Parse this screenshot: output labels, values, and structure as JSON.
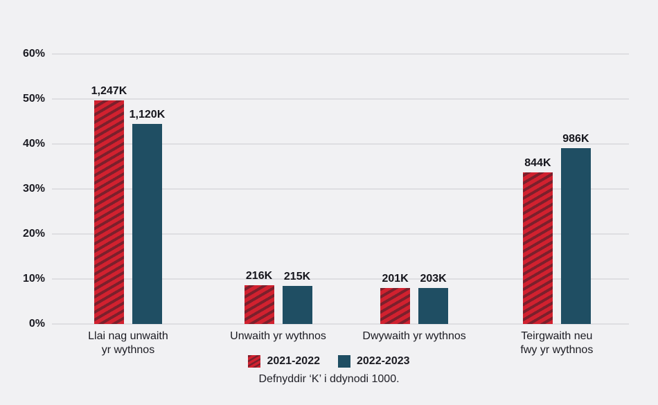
{
  "colors": {
    "background": "#f1f1f3",
    "gridline": "#dedee2",
    "text": "#1b1b22",
    "series_2021_2022": "#d1212f",
    "series_2021_2022_stripe": "#7b202c",
    "series_2022_2023": "#1f4e63"
  },
  "chart_data": {
    "type": "bar",
    "title": "",
    "categories": [
      [
        "Llai nag unwaith",
        "yr wythnos"
      ],
      [
        "Unwaith yr wythnos"
      ],
      [
        "Dwywaith yr wythnos"
      ],
      [
        "Teirgwaith neu",
        "fwy yr wythnos"
      ]
    ],
    "series": [
      {
        "name": "2021-2022",
        "labels": [
          "1,247K",
          "216K",
          "201K",
          "844K"
        ],
        "values_thousands": [
          1247,
          216,
          201,
          844
        ],
        "pct": [
          49.7,
          8.6,
          8.0,
          33.7
        ],
        "color": "#d1212f",
        "pattern": "diagonal-stripes"
      },
      {
        "name": "2022-2023",
        "labels": [
          "1,120K",
          "215K",
          "203K",
          "986K"
        ],
        "values_thousands": [
          1120,
          215,
          203,
          986
        ],
        "pct": [
          44.4,
          8.5,
          8.0,
          39.1
        ],
        "color": "#1f4e63",
        "pattern": "solid"
      }
    ],
    "y_ticks": [
      "0%",
      "10%",
      "20%",
      "30%",
      "40%",
      "50%",
      "60%"
    ],
    "ylim": [
      0,
      60
    ],
    "xlabel": "",
    "ylabel": "",
    "grid": "horizontal",
    "legend_position": "bottom",
    "footnote": "Defnyddir ‘K’ i ddynodi 1000."
  }
}
